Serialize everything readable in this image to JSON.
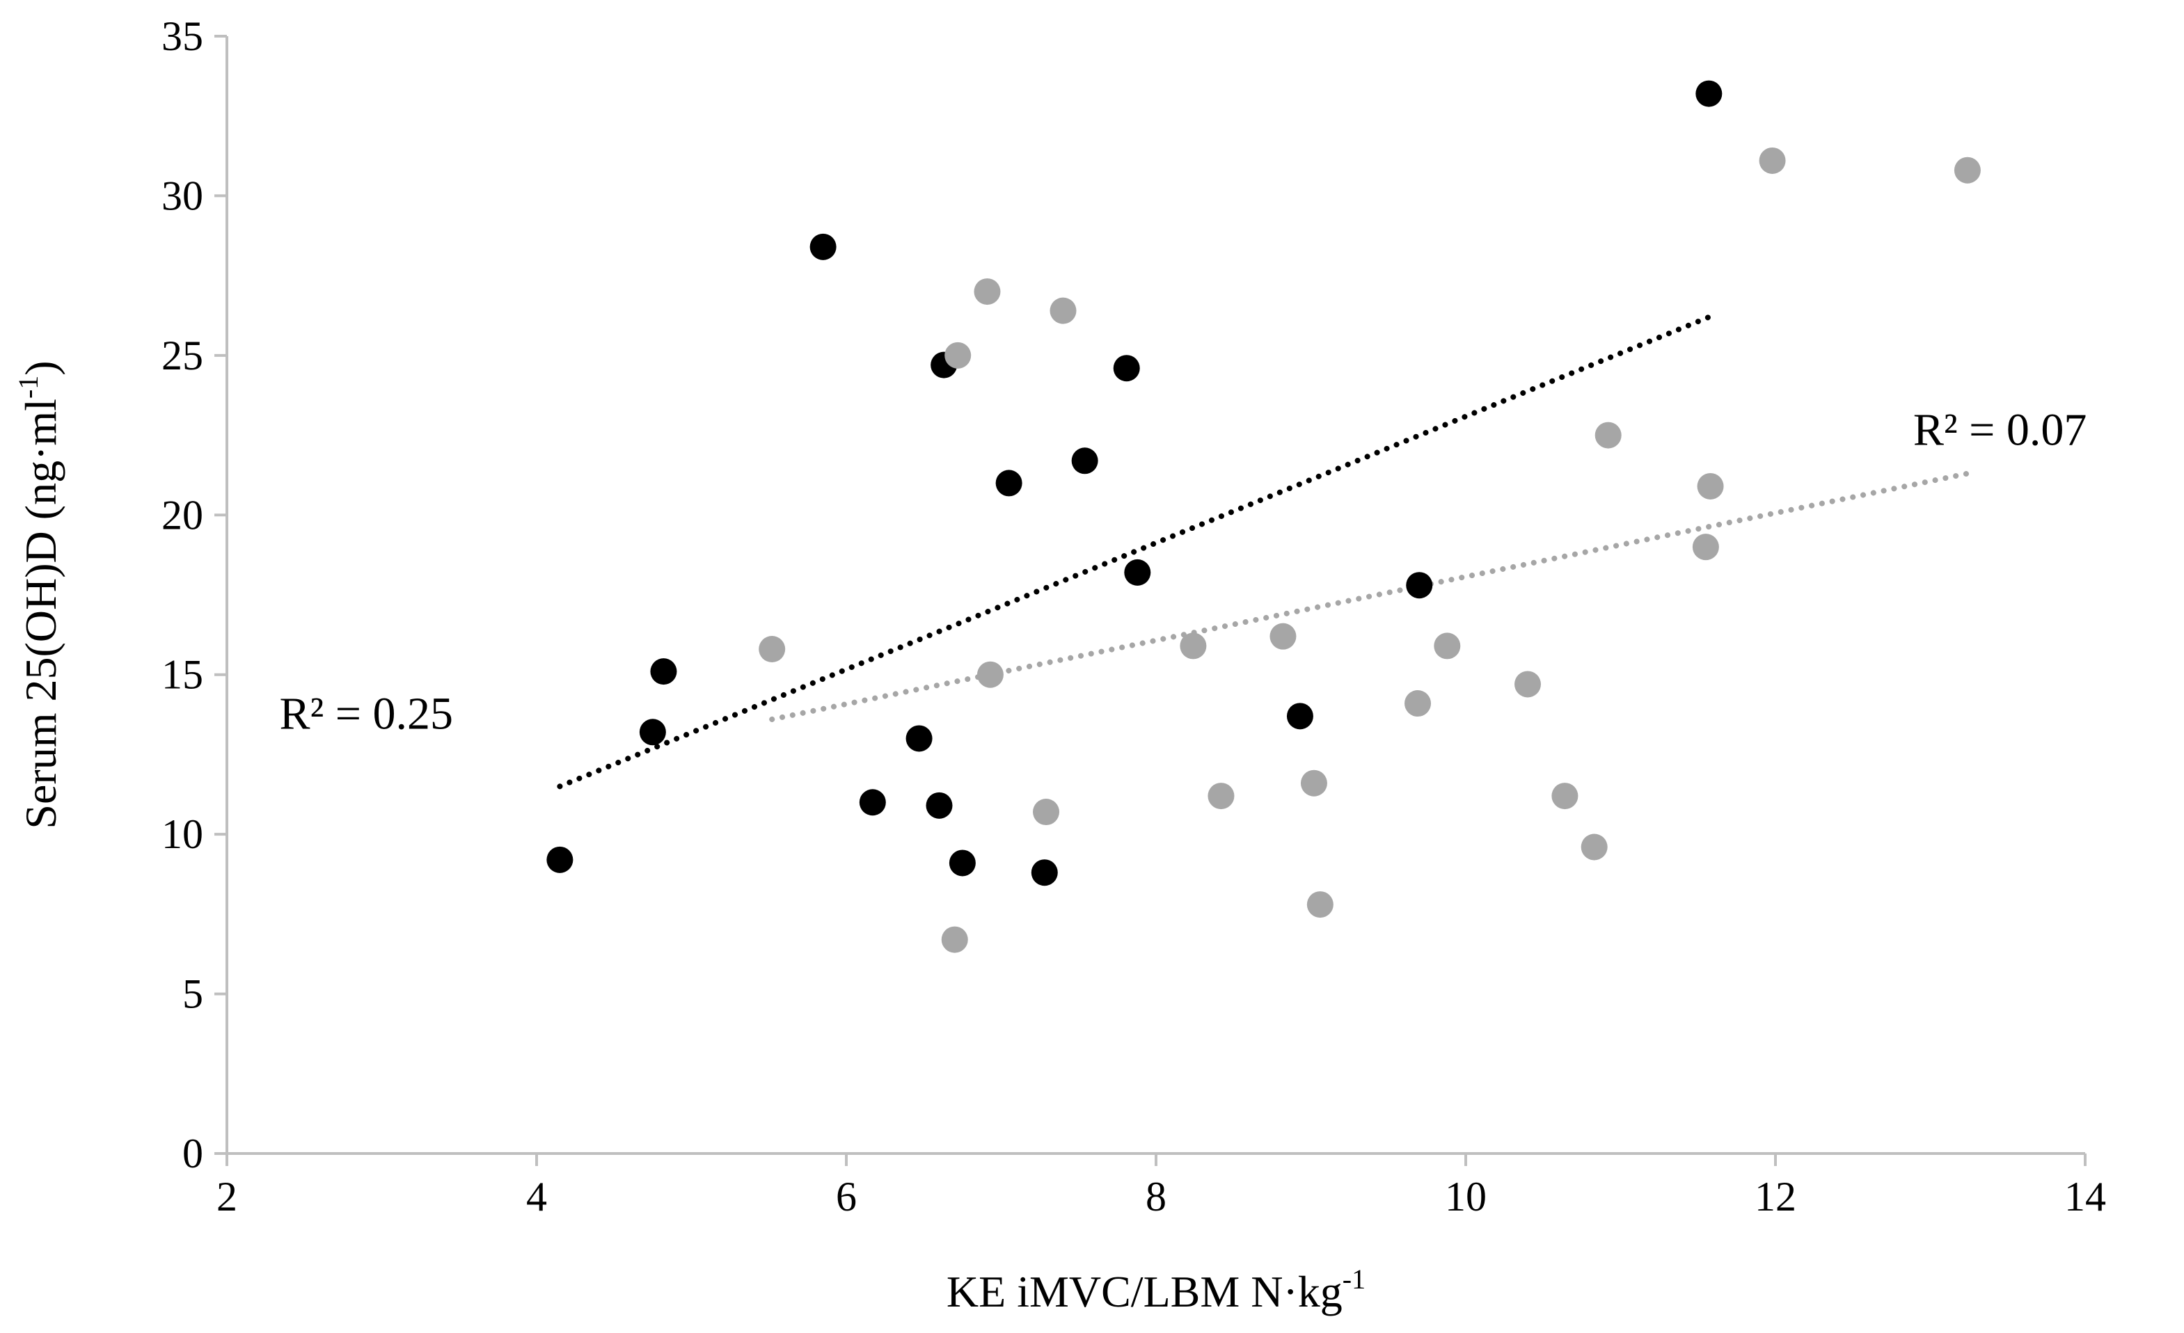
{
  "chart_data": {
    "type": "scatter",
    "title": "",
    "xlabel": "KE iMVC/LBM N·kg",
    "xlabel_sup": "-1",
    "ylabel": "Serum 25(OH)D (ng·ml",
    "ylabel_sup": "-1",
    "ylabel_end": ")",
    "xlim": [
      2,
      14
    ],
    "ylim": [
      0,
      35
    ],
    "x_ticks": [
      2,
      4,
      6,
      8,
      10,
      12,
      14
    ],
    "y_ticks": [
      0,
      5,
      10,
      15,
      20,
      25,
      30,
      35
    ],
    "grid": false,
    "series": [
      {
        "name": "black",
        "color": "#000000",
        "points": [
          [
            4.15,
            9.2
          ],
          [
            4.75,
            13.2
          ],
          [
            4.82,
            15.1
          ],
          [
            5.85,
            28.4
          ],
          [
            6.17,
            11.0
          ],
          [
            6.47,
            13.0
          ],
          [
            6.6,
            10.9
          ],
          [
            6.63,
            24.7
          ],
          [
            6.75,
            9.1
          ],
          [
            7.05,
            21.0
          ],
          [
            7.28,
            8.8
          ],
          [
            7.54,
            21.7
          ],
          [
            7.81,
            24.6
          ],
          [
            7.88,
            18.2
          ],
          [
            8.93,
            13.7
          ],
          [
            9.7,
            17.8
          ],
          [
            11.57,
            33.2
          ]
        ],
        "trendline": {
          "x_start": 4.15,
          "x_end": 11.57,
          "y_start": 11.5,
          "y_end": 26.2
        },
        "r2_label": "R² = 0.25",
        "r2_anchor": [
          2.9,
          13.3
        ]
      },
      {
        "name": "gray",
        "color": "#a6a6a6",
        "points": [
          [
            5.52,
            15.8
          ],
          [
            6.7,
            6.7
          ],
          [
            6.72,
            25.0
          ],
          [
            6.91,
            27.0
          ],
          [
            6.93,
            15.0
          ],
          [
            7.29,
            10.7
          ],
          [
            7.4,
            26.4
          ],
          [
            8.24,
            15.9
          ],
          [
            8.42,
            11.2
          ],
          [
            8.82,
            16.2
          ],
          [
            9.02,
            11.6
          ],
          [
            9.06,
            7.8
          ],
          [
            9.69,
            14.1
          ],
          [
            9.88,
            15.9
          ],
          [
            10.4,
            14.7
          ],
          [
            10.64,
            11.2
          ],
          [
            10.83,
            9.6
          ],
          [
            10.92,
            22.5
          ],
          [
            11.55,
            19.0
          ],
          [
            11.58,
            20.9
          ],
          [
            11.98,
            31.1
          ],
          [
            13.24,
            30.8
          ]
        ],
        "trendline": {
          "x_start": 5.52,
          "x_end": 13.24,
          "y_start": 13.6,
          "y_end": 21.3
        },
        "r2_label": "R² = 0.07",
        "r2_anchor": [
          13.45,
          22.2
        ]
      }
    ]
  }
}
